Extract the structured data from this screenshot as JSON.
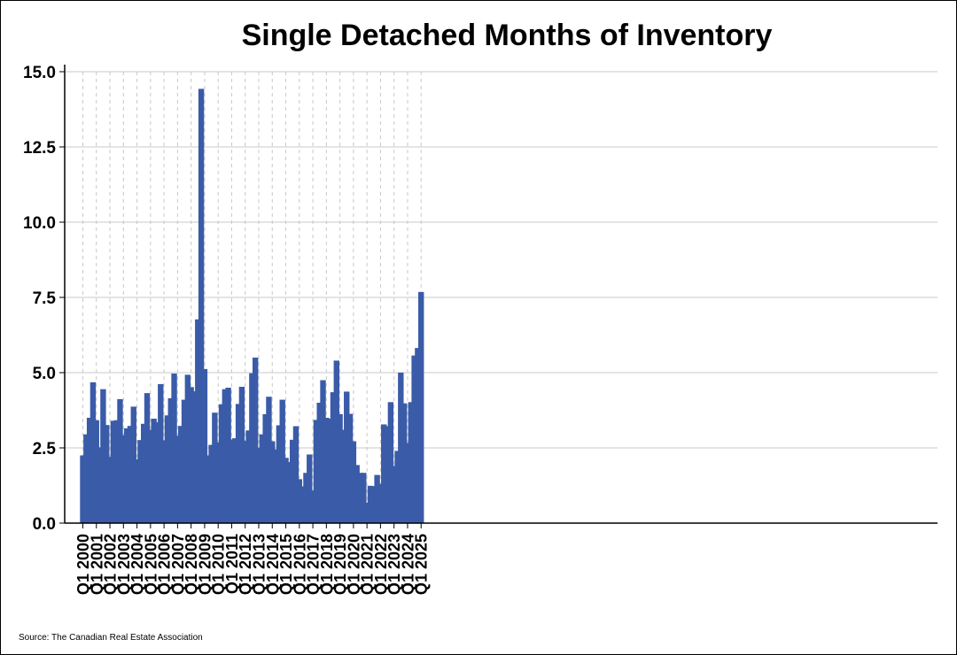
{
  "chart_data": {
    "type": "bar",
    "title": "Single Detached Months of Inventory",
    "xlabel": "",
    "ylabel": "",
    "ylim": [
      0,
      15
    ],
    "yticks": [
      "0.0",
      "2.5",
      "5.0",
      "7.5",
      "10.0",
      "12.5",
      "15.0"
    ],
    "grid": "horizontal solid, vertical dashed at each Q1",
    "bar_color": "#3A5BA8",
    "source": "Source: The Canadian Real Estate Association",
    "xtick_labels": [
      "Q1 2000",
      "Q1 2001",
      "Q1 2002",
      "Q1 2003",
      "Q1 2004",
      "Q1 2005",
      "Q1 2006",
      "Q1 2007",
      "Q1 2008",
      "Q1 2009",
      "Q1 2010",
      "Q1 2011",
      "Q1 2012",
      "Q1 2013",
      "Q1 2014",
      "Q1 2015",
      "Q1 2016",
      "Q1 2017",
      "Q1 2018",
      "Q1 2019",
      "Q1 2020",
      "Q1 2021",
      "Q1 2022",
      "Q1 2023",
      "Q1 2024",
      "Q1 2025"
    ],
    "categories": [
      "Q1 2000",
      "Q2 2000",
      "Q3 2000",
      "Q4 2000",
      "Q1 2001",
      "Q2 2001",
      "Q3 2001",
      "Q4 2001",
      "Q1 2002",
      "Q2 2002",
      "Q3 2002",
      "Q4 2002",
      "Q1 2003",
      "Q2 2003",
      "Q3 2003",
      "Q4 2003",
      "Q1 2004",
      "Q2 2004",
      "Q3 2004",
      "Q4 2004",
      "Q1 2005",
      "Q2 2005",
      "Q3 2005",
      "Q4 2005",
      "Q1 2006",
      "Q2 2006",
      "Q3 2006",
      "Q4 2006",
      "Q1 2007",
      "Q2 2007",
      "Q3 2007",
      "Q4 2007",
      "Q1 2008",
      "Q2 2008",
      "Q3 2008",
      "Q4 2008",
      "Q1 2009",
      "Q2 2009",
      "Q3 2009",
      "Q4 2009",
      "Q1 2010",
      "Q2 2010",
      "Q3 2010",
      "Q4 2010",
      "Q1 2011",
      "Q2 2011",
      "Q3 2011",
      "Q4 2011",
      "Q1 2012",
      "Q2 2012",
      "Q3 2012",
      "Q4 2012",
      "Q1 2013",
      "Q2 2013",
      "Q3 2013",
      "Q4 2013",
      "Q1 2014",
      "Q2 2014",
      "Q3 2014",
      "Q4 2014",
      "Q1 2015",
      "Q2 2015",
      "Q3 2015",
      "Q4 2015",
      "Q1 2016",
      "Q2 2016",
      "Q3 2016",
      "Q4 2016",
      "Q1 2017",
      "Q2 2017",
      "Q3 2017",
      "Q4 2017",
      "Q1 2018",
      "Q2 2018",
      "Q3 2018",
      "Q4 2018",
      "Q1 2019",
      "Q2 2019",
      "Q3 2019",
      "Q4 2019",
      "Q1 2020",
      "Q2 2020",
      "Q3 2020",
      "Q4 2020",
      "Q1 2021",
      "Q2 2021",
      "Q3 2021",
      "Q4 2021",
      "Q1 2022",
      "Q2 2022",
      "Q3 2022",
      "Q4 2022",
      "Q1 2023",
      "Q2 2023",
      "Q3 2023",
      "Q4 2023",
      "Q1 2024",
      "Q2 2024",
      "Q3 2024",
      "Q4 2024",
      "Q1 2025"
    ],
    "values": [
      2.25,
      2.95,
      3.5,
      4.68,
      3.42,
      2.52,
      4.45,
      3.26,
      2.2,
      3.4,
      3.42,
      4.12,
      2.92,
      3.15,
      3.23,
      3.87,
      2.12,
      2.76,
      3.3,
      4.32,
      3.1,
      3.47,
      3.35,
      4.62,
      2.75,
      3.58,
      4.15,
      4.97,
      2.9,
      3.23,
      4.1,
      4.93,
      4.52,
      4.38,
      6.77,
      14.43,
      5.12,
      2.25,
      2.6,
      3.67,
      2.68,
      3.95,
      4.45,
      4.5,
      2.78,
      2.82,
      3.96,
      4.53,
      2.73,
      3.08,
      4.98,
      5.5,
      2.5,
      2.95,
      3.62,
      4.2,
      2.72,
      2.45,
      3.25,
      4.1,
      2.17,
      2.03,
      2.77,
      3.22,
      1.46,
      1.22,
      1.67,
      2.28,
      1.08,
      3.43,
      4.0,
      4.75,
      3.5,
      3.47,
      4.35,
      5.4,
      3.62,
      3.1,
      4.37,
      3.63,
      2.72,
      1.93,
      1.67,
      1.67,
      0.68,
      1.24,
      1.23,
      1.6,
      1.3,
      3.28,
      3.22,
      4.02,
      1.9,
      2.4,
      5.0,
      3.98,
      2.66,
      4.02,
      5.57,
      5.82,
      7.68
    ]
  }
}
